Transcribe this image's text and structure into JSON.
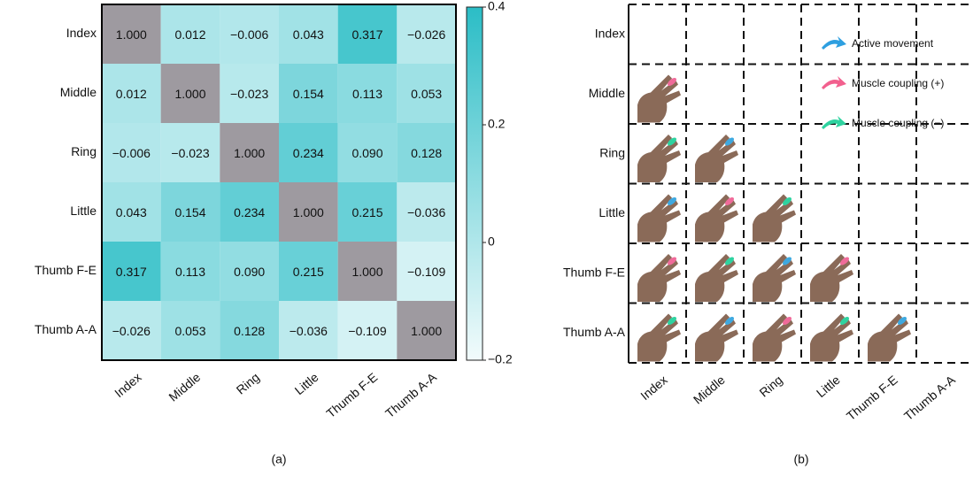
{
  "chart_data": {
    "type": "heatmap",
    "rows": [
      "Index",
      "Middle",
      "Ring",
      "Little",
      "Thumb F-E",
      "Thumb A-A"
    ],
    "columns": [
      "Index",
      "Middle",
      "Ring",
      "Little",
      "Thumb F-E",
      "Thumb A-A"
    ],
    "values": [
      [
        1,
        0.012,
        -0.006,
        0.043,
        0.317,
        -0.026
      ],
      [
        0.012,
        1,
        -0.023,
        0.154,
        0.113,
        0.053
      ],
      [
        -0.006,
        -0.023,
        1,
        0.234,
        0.09,
        0.128
      ],
      [
        0.043,
        0.154,
        0.234,
        1,
        0.215,
        -0.036
      ],
      [
        0.317,
        0.113,
        0.09,
        0.215,
        1,
        -0.109
      ],
      [
        -0.026,
        0.053,
        0.128,
        -0.036,
        -0.109,
        1
      ]
    ],
    "value_labels": [
      [
        "1.000",
        "0.012",
        "−0.006",
        "0.043",
        "0.317",
        "−0.026"
      ],
      [
        "0.012",
        "1.000",
        "−0.023",
        "0.154",
        "0.113",
        "0.053"
      ],
      [
        "−0.006",
        "−0.023",
        "1.000",
        "0.234",
        "0.090",
        "0.128"
      ],
      [
        "0.043",
        "0.154",
        "0.234",
        "1.000",
        "0.215",
        "−0.036"
      ],
      [
        "0.317",
        "0.113",
        "0.090",
        "0.215",
        "1.000",
        "−0.109"
      ],
      [
        "−0.026",
        "0.053",
        "0.128",
        "−0.036",
        "−0.109",
        "1.000"
      ]
    ],
    "clim": [
      -0.2,
      0.4
    ],
    "cticks": [
      {
        "value": -0.2,
        "label": "−0.2"
      },
      0,
      0.2,
      0.4
    ],
    "colors": [
      "#f2fbfc",
      "#2bbdc6"
    ],
    "diagonal_color": "#9e9aa0",
    "caption": "(a)"
  },
  "panel_b": {
    "rows": [
      "Index",
      "Middle",
      "Ring",
      "Little",
      "Thumb F-E",
      "Thumb A-A"
    ],
    "columns": [
      "Index",
      "Middle",
      "Ring",
      "Little",
      "Thumb F-E",
      "Thumb A-A"
    ],
    "legend": [
      "Active movement",
      "Muscle coupling (+)",
      "Muscle coupling (−)"
    ],
    "caption": "(b)"
  }
}
